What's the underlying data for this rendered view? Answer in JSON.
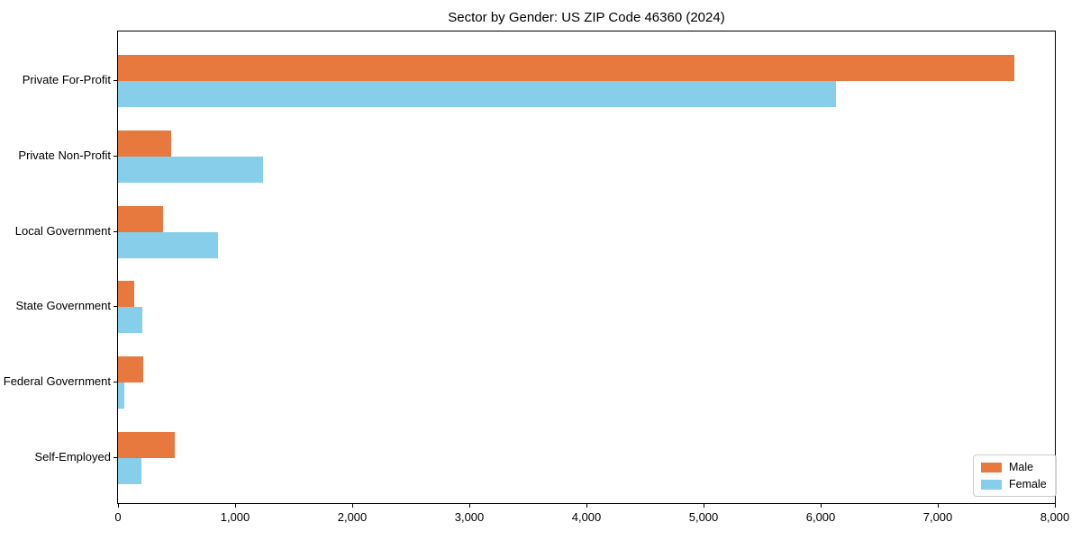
{
  "chart_data": {
    "type": "bar",
    "orientation": "horizontal",
    "title": "Sector by Gender: US ZIP Code 46360 (2024)",
    "categories": [
      "Private For-Profit",
      "Private Non-Profit",
      "Local Government",
      "State Government",
      "Federal Government",
      "Self-Employed"
    ],
    "series": [
      {
        "name": "Male",
        "color": "#e8793e",
        "values": [
          7650,
          450,
          385,
          140,
          215,
          485
        ]
      },
      {
        "name": "Female",
        "color": "#87ceeb",
        "values": [
          6130,
          1240,
          850,
          205,
          50,
          200
        ]
      }
    ],
    "xlim": [
      0,
      8000
    ],
    "xticks": [
      0,
      1000,
      2000,
      3000,
      4000,
      5000,
      6000,
      7000,
      8000
    ],
    "xtick_labels": [
      "0",
      "1,000",
      "2,000",
      "3,000",
      "4,000",
      "5,000",
      "6,000",
      "7,000",
      "8,000"
    ],
    "xlabel": "",
    "ylabel": "",
    "grid": false,
    "legend_position": "lower right"
  }
}
